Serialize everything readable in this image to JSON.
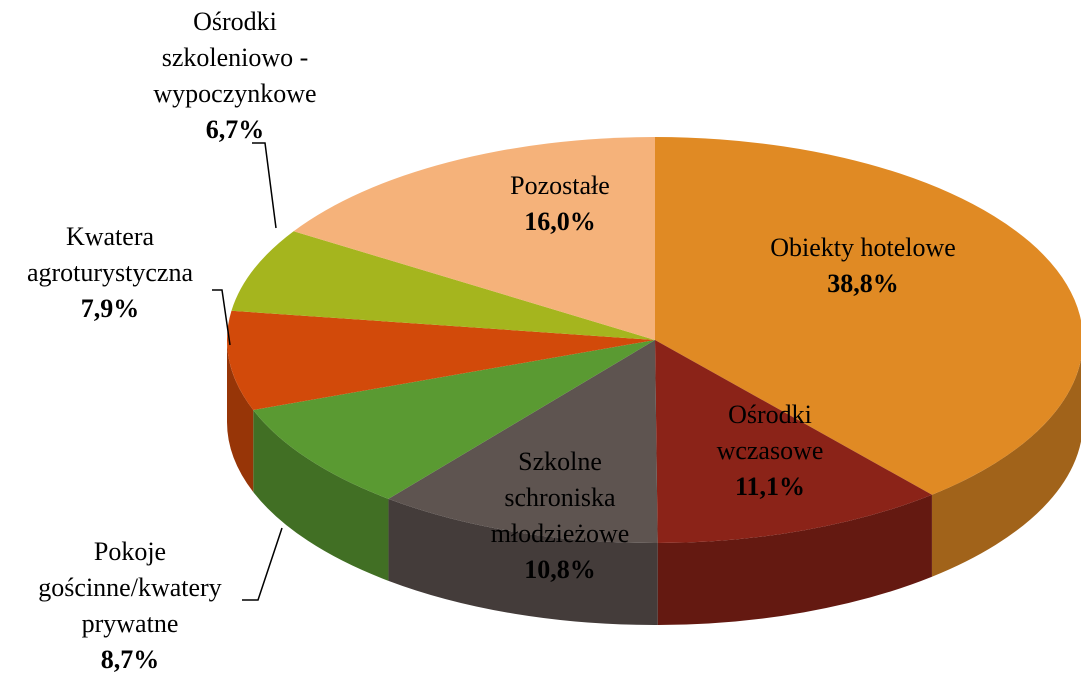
{
  "chart_data": {
    "type": "pie3d",
    "categories": [
      "Obiekty hotelowe",
      "Ośrodki wczasowe",
      "Szkolne schroniska młodzieżowe",
      "Pokoje gościnne/kwatery prywatne",
      "Kwatera agroturystyczna",
      "Ośrodki szkoleniowo - wypoczynkowe",
      "Pozostałe"
    ],
    "values": [
      38.8,
      11.1,
      10.8,
      8.7,
      7.9,
      6.7,
      16.0
    ],
    "value_labels": [
      "38,8%",
      "11,1%",
      "10,8%",
      "8,7%",
      "7,9%",
      "6,7%",
      "16,0%"
    ],
    "colors": [
      "#e08a24",
      "#8b2318",
      "#5e5450",
      "#5a9a32",
      "#d24a0a",
      "#a5b51e",
      "#f5b27a"
    ]
  }
}
